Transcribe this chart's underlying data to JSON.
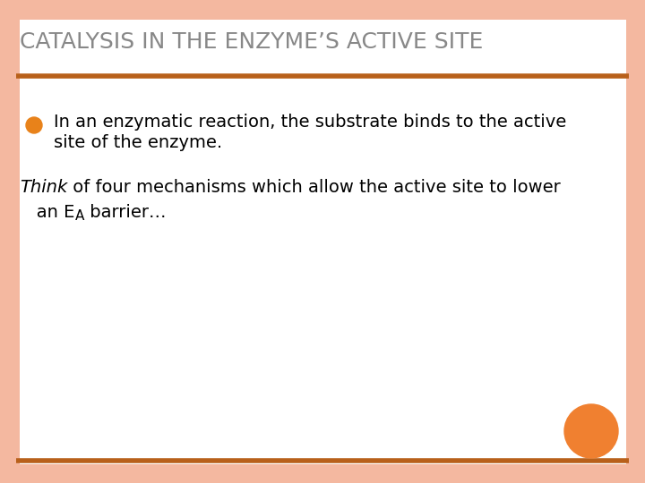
{
  "title": "CATALYSIS IN THE ENZYME’S ACTIVE SITE",
  "title_color": "#888888",
  "title_fontsize": 18,
  "bg_color": "#ffffff",
  "border_color": "#f4b8a0",
  "border_lw": 18,
  "rule_color": "#b8601a",
  "bullet_color": "#e8821a",
  "bullet_text_line1": "In an enzymatic reaction, the substrate binds to the active",
  "bullet_text_line2": "site of the enzyme.",
  "think_italic": "Think",
  "think_rest": " of four mechanisms which allow the active site to lower",
  "think_line2_pre": "   an E",
  "think_subscript": "A",
  "think_line2_post": " barrier…",
  "circle_color": "#f08030",
  "text_color": "#000000",
  "text_fontsize": 14
}
